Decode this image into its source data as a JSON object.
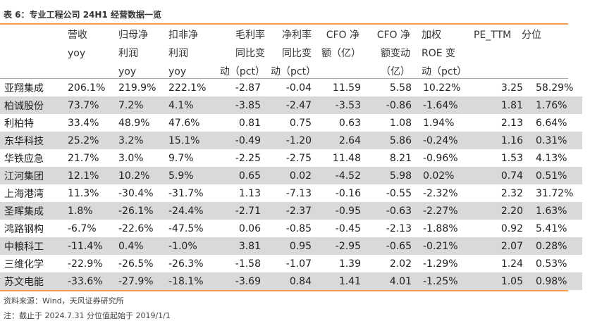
{
  "title": "表 6：专业工程公司 24H1 经营数据一览",
  "header_cols": [
    "",
    "营收\nyoy",
    "归母净\n利润\nyoy",
    "扣非净\n利润\nyoy",
    "毛利率\n同比变\n动（pct）",
    "净利率\n同比变\n动（pct）",
    "CFO 净\n额（亿）",
    "CFO 净\n额变动\n（亿）",
    "加权\nROE 变\n动（pct）",
    "PE_TTM",
    "分位"
  ],
  "rows": [
    [
      "亚翔集成",
      "206.1%",
      "219.9%",
      "222.1%",
      "-2.87",
      "-0.04",
      "11.59",
      "5.58",
      "10.22%",
      "3.25",
      "58.29%"
    ],
    [
      "柏诚股份",
      "73.7%",
      "7.2%",
      "4.1%",
      "-3.85",
      "-2.47",
      "-3.53",
      "-0.86",
      "-1.64%",
      "1.81",
      "1.76%"
    ],
    [
      "利柏特",
      "33.4%",
      "48.9%",
      "47.6%",
      "0.81",
      "0.75",
      "0.63",
      "1.08",
      "1.94%",
      "2.13",
      "6.64%"
    ],
    [
      "东华科技",
      "25.2%",
      "3.2%",
      "15.1%",
      "-0.49",
      "-1.20",
      "2.64",
      "5.86",
      "-0.24%",
      "1.16",
      "0.31%"
    ],
    [
      "华铁应急",
      "21.7%",
      "3.0%",
      "9.7%",
      "-2.25",
      "-2.75",
      "11.48",
      "8.21",
      "-0.96%",
      "1.53",
      "4.13%"
    ],
    [
      "江河集团",
      "12.1%",
      "10.2%",
      "5.9%",
      "0.65",
      "0.02",
      "-4.52",
      "5.98",
      "0.02%",
      "0.74",
      "0.51%"
    ],
    [
      "上海港湾",
      "11.3%",
      "-30.4%",
      "-31.7%",
      "1.13",
      "-7.13",
      "-0.16",
      "-0.55",
      "-2.32%",
      "2.32",
      "31.72%"
    ],
    [
      "圣晖集成",
      "1.8%",
      "-26.1%",
      "-24.4%",
      "-2.71",
      "-2.37",
      "-0.95",
      "-0.63",
      "-2.27%",
      "2.20",
      "1.63%"
    ],
    [
      "鸿路钢构",
      "-6.7%",
      "-22.6%",
      "-47.5%",
      "0.06",
      "-0.85",
      "-0.45",
      "-2.13",
      "-1.88%",
      "0.92",
      "5.41%"
    ],
    [
      "中粮科工",
      "-11.4%",
      "0.4%",
      "-1.0%",
      "3.81",
      "0.95",
      "-2.95",
      "-0.65",
      "-0.21%",
      "2.07",
      "0.28%"
    ],
    [
      "三维化学",
      "-22.9%",
      "-26.5%",
      "-26.3%",
      "-1.58",
      "-1.07",
      "1.39",
      "2.02",
      "-1.29%",
      "1.24",
      "0.53%"
    ],
    [
      "苏文电能",
      "-33.6%",
      "-27.9%",
      "-18.1%",
      "-3.69",
      "0.84",
      "1.41",
      "4.01",
      "-1.25%",
      "1.05",
      "0.98%"
    ]
  ],
  "source": "资料来源：Wind，天风证券研究所",
  "note": "注：截止于 2024.7.31 分位值起始于 2019/1/1"
}
